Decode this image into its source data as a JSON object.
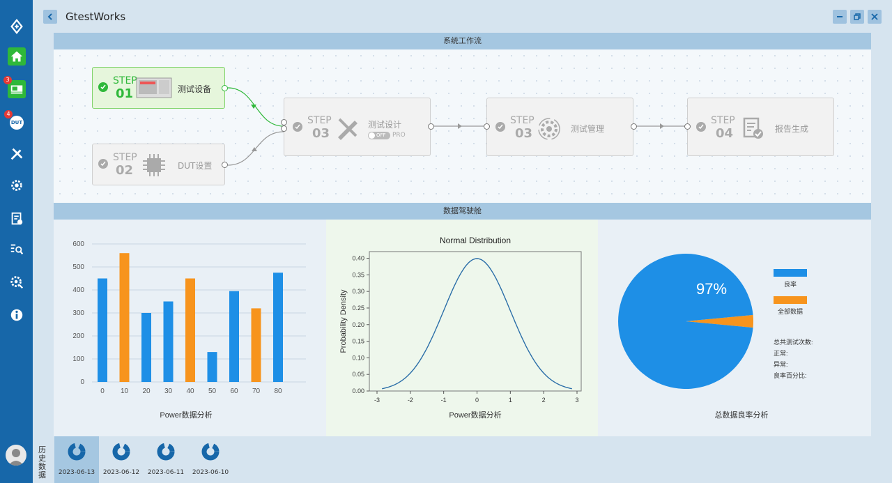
{
  "app": {
    "title": "GtestWorks"
  },
  "sidebar": {
    "items": [
      {
        "icon": "logo-icon"
      },
      {
        "icon": "home-icon"
      },
      {
        "icon": "device-icon",
        "badge": "3"
      },
      {
        "icon": "dut-icon",
        "badge": "4",
        "text": "DUT"
      },
      {
        "icon": "tools-icon"
      },
      {
        "icon": "settings-icon"
      },
      {
        "icon": "report-icon"
      },
      {
        "icon": "search-data-icon"
      },
      {
        "icon": "gear-config-icon"
      },
      {
        "icon": "info-icon"
      },
      {
        "icon": "avatar-icon"
      }
    ]
  },
  "workflow": {
    "title": "系统工作流",
    "nodes": [
      {
        "step": "STEP",
        "num": "01",
        "label": "测试设备",
        "status": "active"
      },
      {
        "step": "STEP",
        "num": "02",
        "label": "DUT设置",
        "status": "done"
      },
      {
        "step": "STEP",
        "num": "03",
        "label": "测试设计",
        "status": "done",
        "toggle": "OFF",
        "toggle_tag": "PRO"
      },
      {
        "step": "STEP",
        "num": "03",
        "label": "测试管理",
        "status": "done"
      },
      {
        "step": "STEP",
        "num": "04",
        "label": "报告生成",
        "status": "done"
      }
    ]
  },
  "dashboard": {
    "title": "数据驾驶舱"
  },
  "chart_data": [
    {
      "type": "bar",
      "xlabel": "Power数据分析",
      "ylim": [
        0,
        600
      ],
      "yticks": [
        0,
        100,
        200,
        300,
        400,
        500,
        600
      ],
      "series": [
        {
          "color": "#1e8fe6",
          "x": [
            0,
            20,
            30,
            50,
            60,
            80
          ],
          "values": [
            450,
            300,
            350,
            130,
            395,
            475
          ]
        },
        {
          "color": "#f7941d",
          "x": [
            10,
            40,
            70
          ],
          "values": [
            560,
            450,
            320
          ]
        }
      ],
      "xticks": [
        "0",
        "10",
        "20",
        "30",
        "40",
        "50",
        "60",
        "70",
        "80"
      ]
    },
    {
      "type": "line",
      "title": "Normal Distribution",
      "xlabel": "Power数据分析",
      "ylabel": "Probability Density",
      "xlim": [
        -3,
        3
      ],
      "ylim": [
        0,
        0.42
      ],
      "xticks": [
        -3,
        -2,
        -1,
        0,
        1,
        2,
        3
      ],
      "yticks": [
        "0.00",
        "0.05",
        "0.10",
        "0.15",
        "0.20",
        "0.25",
        "0.30",
        "0.35",
        "0.40"
      ],
      "x": [
        -3,
        -2.5,
        -2,
        -1.5,
        -1,
        -0.5,
        0,
        0.5,
        1,
        1.5,
        2,
        2.5,
        3
      ],
      "y": [
        0.0044,
        0.0175,
        0.054,
        0.1295,
        0.242,
        0.352,
        0.3989,
        0.352,
        0.242,
        0.1295,
        0.054,
        0.0175,
        0.0044
      ],
      "color": "#2b6ea8"
    },
    {
      "type": "pie",
      "xlabel": "总数据良率分析",
      "slices": [
        {
          "name": "良率",
          "value": 97,
          "color": "#1e8fe6"
        },
        {
          "name": "全部数据",
          "value": 3,
          "color": "#f7941d"
        }
      ],
      "center_label": "97%",
      "stats": [
        "总共测试次数:",
        "正常:",
        "异常:",
        "良率百分比:"
      ]
    }
  ],
  "history": {
    "label": "历史数据",
    "items": [
      {
        "date": "2023-06-13",
        "selected": true
      },
      {
        "date": "2023-06-12",
        "selected": false
      },
      {
        "date": "2023-06-11",
        "selected": false
      },
      {
        "date": "2023-06-10",
        "selected": false
      }
    ]
  },
  "colors": {
    "sidebar": "#1767a9",
    "accent_green": "#2fb83a",
    "bar_blue": "#1e8fe6",
    "bar_orange": "#f7941d",
    "section_bar": "#a5c7e1"
  }
}
